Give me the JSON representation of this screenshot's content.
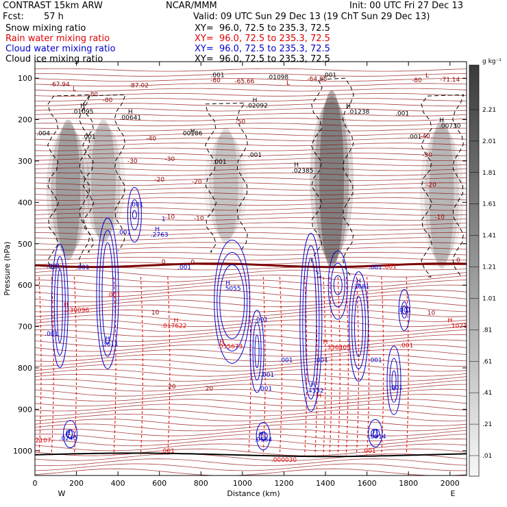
{
  "header": {
    "model": "CONTRAST 15km ARW",
    "center": "NCAR/MMM",
    "init": "Init: 00 UTC Fri 27 Dec 13",
    "fcst_label": "Fcst:",
    "fcst_value": "57 h",
    "valid": "Valid: 09 UTC Sun 29 Dec 13 (19 ChT Sun 29 Dec 13)",
    "fields": [
      {
        "name": "Snow mixing ratio",
        "xy": "XY=  96.0, 72.5 to 235.3, 72.5",
        "color": "#000000"
      },
      {
        "name": "Rain water mixing ratio",
        "xy": "XY=  96.0, 72.5 to 235.3, 72.5",
        "color": "#dd0000"
      },
      {
        "name": "Cloud water mixing ratio",
        "xy": "XY=  96.0, 72.5 to 235.3, 72.5",
        "color": "#0000cc"
      },
      {
        "name": "Cloud ice mixing ratio",
        "xy": "XY=  96.0, 72.5 to 235.3, 72.5",
        "color": "#000000"
      }
    ]
  },
  "chart_data": {
    "type": "heatmap",
    "xlabel": "Distance (km)",
    "ylabel": "Pressure (hPa)",
    "xlim": [
      0,
      2080
    ],
    "ylim": [
      1060,
      60
    ],
    "x_ticks": [
      0,
      200,
      400,
      600,
      800,
      1000,
      1200,
      1400,
      1600,
      1800,
      2000
    ],
    "y_ticks": [
      100,
      200,
      300,
      400,
      500,
      600,
      700,
      800,
      900,
      1000
    ],
    "x_end_labels": {
      "left": "W",
      "right": "E"
    },
    "colorbar": {
      "unit": "g kg⁻¹",
      "labels": [
        "2.21",
        "2.01",
        "1.81",
        "1.61",
        "1.41",
        "1.21",
        "1.01",
        ".81",
        ".61",
        ".41",
        ".21",
        ".01"
      ]
    },
    "snow_columns": [
      {
        "x": 160,
        "p_top": 200,
        "p_bottom": 540,
        "max": 1.4
      },
      {
        "x": 330,
        "p_top": 200,
        "p_bottom": 500,
        "max": 1.0
      },
      {
        "x": 920,
        "p_top": 220,
        "p_bottom": 500,
        "max": 0.8
      },
      {
        "x": 1430,
        "p_top": 130,
        "p_bottom": 560,
        "max": 2.3
      },
      {
        "x": 1960,
        "p_top": 200,
        "p_bottom": 560,
        "max": 1.0
      }
    ],
    "temperature_labels": [
      {
        "x": 120,
        "p": 120,
        "text": "-67.94"
      },
      {
        "x": 190,
        "p": 130,
        "text": "L"
      },
      {
        "x": 280,
        "p": 144,
        "text": "-80"
      },
      {
        "x": 500,
        "p": 122,
        "text": "-87.02"
      },
      {
        "x": 870,
        "p": 110,
        "text": "-80"
      },
      {
        "x": 1010,
        "p": 112,
        "text": "-65.66"
      },
      {
        "x": 1220,
        "p": 116,
        "text": "L"
      },
      {
        "x": 1360,
        "p": 106,
        "text": "-64.85"
      },
      {
        "x": 1840,
        "p": 110,
        "text": "-80"
      },
      {
        "x": 1890,
        "p": 98,
        "text": "L"
      },
      {
        "x": 2000,
        "p": 108,
        "text": "-71.14"
      },
      {
        "x": 350,
        "p": 158,
        "text": "-80"
      },
      {
        "x": 990,
        "p": 210,
        "text": "-50"
      },
      {
        "x": 560,
        "p": 250,
        "text": "-40"
      },
      {
        "x": 1880,
        "p": 245,
        "text": "-40"
      },
      {
        "x": 470,
        "p": 305,
        "text": "-30"
      },
      {
        "x": 650,
        "p": 300,
        "text": "-30"
      },
      {
        "x": 1890,
        "p": 290,
        "text": "-30"
      },
      {
        "x": 600,
        "p": 350,
        "text": "-20"
      },
      {
        "x": 780,
        "p": 355,
        "text": "-20"
      },
      {
        "x": 1910,
        "p": 362,
        "text": "-20"
      },
      {
        "x": 650,
        "p": 440,
        "text": "-10"
      },
      {
        "x": 790,
        "p": 443,
        "text": "-10"
      },
      {
        "x": 1950,
        "p": 440,
        "text": "-10"
      },
      {
        "x": 620,
        "p": 548,
        "text": "0"
      },
      {
        "x": 760,
        "p": 549,
        "text": "0"
      },
      {
        "x": 2040,
        "p": 544,
        "text": "0"
      },
      {
        "x": 580,
        "p": 671,
        "text": "10"
      },
      {
        "x": 1910,
        "p": 672,
        "text": "10"
      },
      {
        "x": 660,
        "p": 850,
        "text": "20"
      },
      {
        "x": 840,
        "p": 855,
        "text": "20"
      }
    ],
    "ice_labels": [
      {
        "x": 230,
        "p": 172,
        "text": "H"
      },
      {
        "x": 230,
        "p": 186,
        "text": ".01095"
      },
      {
        "x": 460,
        "p": 186,
        "text": "H"
      },
      {
        "x": 460,
        "p": 200,
        "text": ".00641"
      },
      {
        "x": 40,
        "p": 238,
        "text": ".004"
      },
      {
        "x": 260,
        "p": 246,
        "text": ".001"
      },
      {
        "x": 760,
        "p": 233,
        "text": "H"
      },
      {
        "x": 760,
        "p": 238,
        "text": "00186"
      },
      {
        "x": 880,
        "p": 97,
        "text": ".001"
      },
      {
        "x": 1060,
        "p": 158,
        "text": "H"
      },
      {
        "x": 1070,
        "p": 171,
        "text": ".02092"
      },
      {
        "x": 1170,
        "p": 102,
        "text": ".01098"
      },
      {
        "x": 1420,
        "p": 97,
        "text": ".001"
      },
      {
        "x": 1510,
        "p": 172,
        "text": "H"
      },
      {
        "x": 1560,
        "p": 186,
        "text": ".01238"
      },
      {
        "x": 1770,
        "p": 190,
        "text": ".001"
      },
      {
        "x": 1960,
        "p": 206,
        "text": "H"
      },
      {
        "x": 2000,
        "p": 220,
        "text": ".00730"
      },
      {
        "x": 1830,
        "p": 246,
        "text": ".001"
      },
      {
        "x": 1260,
        "p": 314,
        "text": "H"
      },
      {
        "x": 1290,
        "p": 328,
        "text": ".02385"
      },
      {
        "x": 890,
        "p": 307,
        "text": ".001"
      },
      {
        "x": 1060,
        "p": 290,
        "text": ".001"
      }
    ],
    "cloud_water_labels": [
      {
        "x": 490,
        "p": 410,
        "text": ".001"
      },
      {
        "x": 620,
        "p": 445,
        "text": "1"
      },
      {
        "x": 430,
        "p": 477,
        "text": ".001"
      },
      {
        "x": 590,
        "p": 470,
        "text": "H"
      },
      {
        "x": 600,
        "p": 483,
        "text": ".2763"
      },
      {
        "x": 90,
        "p": 559,
        "text": ".001"
      },
      {
        "x": 230,
        "p": 562,
        "text": ".001"
      },
      {
        "x": 720,
        "p": 562,
        "text": ".001"
      },
      {
        "x": 930,
        "p": 600,
        "text": "H"
      },
      {
        "x": 950,
        "p": 613,
        "text": ".5055"
      },
      {
        "x": 1560,
        "p": 595,
        "text": "H"
      },
      {
        "x": 1570,
        "p": 608,
        "text": ".3681"
      },
      {
        "x": 1640,
        "p": 562,
        "text": ".001"
      },
      {
        "x": 1780,
        "p": 665,
        "text": ".001"
      },
      {
        "x": 80,
        "p": 722,
        "text": ".001"
      },
      {
        "x": 350,
        "p": 734,
        "text": "H"
      },
      {
        "x": 360,
        "p": 747,
        "text": ".3611"
      },
      {
        "x": 1090,
        "p": 688,
        "text": ".001"
      },
      {
        "x": 1210,
        "p": 786,
        "text": ".001"
      },
      {
        "x": 1380,
        "p": 786,
        "text": ".001"
      },
      {
        "x": 1640,
        "p": 786,
        "text": ".001"
      },
      {
        "x": 1120,
        "p": 822,
        "text": ".001"
      },
      {
        "x": 1110,
        "p": 855,
        "text": ".001"
      },
      {
        "x": 1740,
        "p": 852,
        "text": ".001"
      },
      {
        "x": 1340,
        "p": 846,
        "text": "H"
      },
      {
        "x": 1350,
        "p": 860,
        "text": ".4552"
      },
      {
        "x": 160,
        "p": 962,
        "text": "H"
      },
      {
        "x": 160,
        "p": 975,
        "text": ".0240"
      },
      {
        "x": 1090,
        "p": 965,
        "text": "H"
      },
      {
        "x": 1100,
        "p": 978,
        "text": ".0564"
      },
      {
        "x": 1640,
        "p": 958,
        "text": "H"
      },
      {
        "x": 1650,
        "p": 971,
        "text": ".0914"
      }
    ],
    "rain_labels": [
      {
        "x": 1710,
        "p": 560,
        "text": ".001"
      },
      {
        "x": 380,
        "p": 628,
        "text": ".001"
      },
      {
        "x": 150,
        "p": 652,
        "text": "H"
      },
      {
        "x": 200,
        "p": 665,
        "text": ".230096"
      },
      {
        "x": 680,
        "p": 690,
        "text": "H"
      },
      {
        "x": 670,
        "p": 703,
        "text": ".017622"
      },
      {
        "x": 2000,
        "p": 690,
        "text": "H"
      },
      {
        "x": 2040,
        "p": 703,
        "text": ".1021"
      },
      {
        "x": 900,
        "p": 742,
        "text": "H"
      },
      {
        "x": 940,
        "p": 753,
        "text": ".055673"
      },
      {
        "x": 1400,
        "p": 742,
        "text": "H"
      },
      {
        "x": 1460,
        "p": 755,
        "text": ".336409"
      },
      {
        "x": 1790,
        "p": 750,
        "text": ".001"
      },
      {
        "x": 1370,
        "p": 872,
        "text": "H"
      },
      {
        "x": 40,
        "p": 980,
        "text": "2107"
      },
      {
        "x": 640,
        "p": 1005,
        "text": ".001"
      },
      {
        "x": 1610,
        "p": 1005,
        "text": ".001"
      },
      {
        "x": 1200,
        "p": 1027,
        "text": ".000030"
      }
    ]
  }
}
